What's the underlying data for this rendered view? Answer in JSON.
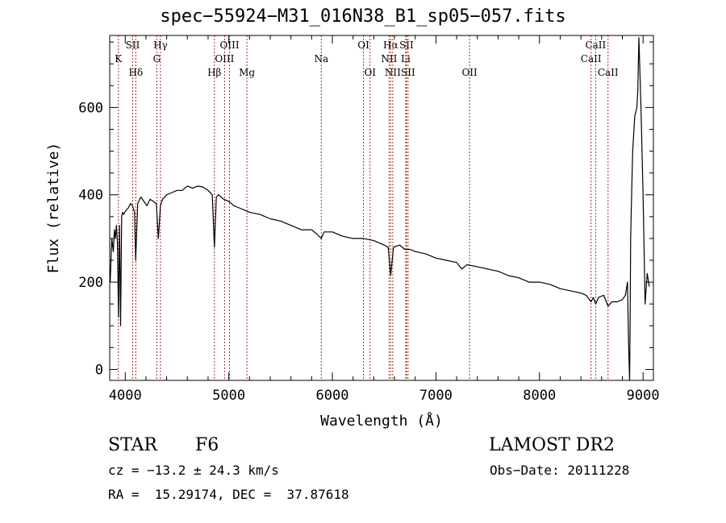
{
  "chart_data": {
    "type": "line",
    "title": "spec−55924−M31_016N38_B1_sp05−057.fits",
    "xlabel": "Wavelength (Å)",
    "ylabel": "Flux (relative)",
    "xlim": [
      3850,
      9100
    ],
    "ylim": [
      -25,
      765
    ],
    "xticks": [
      4000,
      5000,
      6000,
      7000,
      8000,
      9000
    ],
    "yticks": [
      0,
      200,
      400,
      600
    ],
    "series": [
      {
        "x": [
          3855,
          3870,
          3885,
          3895,
          3905,
          3915,
          3925,
          3935,
          3945,
          3955,
          3965,
          3975,
          3985,
          3995,
          4010,
          4030,
          4050,
          4070,
          4090,
          4101,
          4120,
          4150,
          4180,
          4210,
          4240,
          4270,
          4300,
          4320,
          4340,
          4360,
          4400,
          4450,
          4500,
          4550,
          4600,
          4650,
          4700,
          4750,
          4800,
          4840,
          4861,
          4880,
          4900,
          4950,
          5000,
          5050,
          5100,
          5150,
          5200,
          5300,
          5400,
          5500,
          5600,
          5700,
          5800,
          5850,
          5893,
          5920,
          6000,
          6100,
          6200,
          6300,
          6400,
          6450,
          6500,
          6540,
          6563,
          6590,
          6650,
          6700,
          6750,
          6800,
          6900,
          7000,
          7100,
          7200,
          7250,
          7300,
          7400,
          7500,
          7600,
          7700,
          7800,
          7900,
          8000,
          8100,
          8200,
          8300,
          8400,
          8450,
          8498,
          8520,
          8542,
          8570,
          8620,
          8662,
          8700,
          8750,
          8800,
          8830,
          8850,
          8860,
          8870,
          8875,
          8880,
          8890,
          8900,
          8920,
          8940,
          8950,
          8960,
          8980,
          9000,
          9020,
          9040,
          9060
        ],
        "y": [
          200,
          300,
          270,
          320,
          300,
          330,
          290,
          120,
          330,
          100,
          350,
          360,
          355,
          360,
          365,
          370,
          380,
          375,
          360,
          250,
          380,
          395,
          385,
          375,
          390,
          385,
          380,
          300,
          375,
          390,
          400,
          405,
          410,
          410,
          420,
          415,
          420,
          418,
          410,
          400,
          280,
          395,
          400,
          390,
          385,
          375,
          370,
          365,
          360,
          355,
          345,
          340,
          330,
          320,
          320,
          310,
          300,
          315,
          315,
          305,
          300,
          300,
          295,
          290,
          285,
          280,
          215,
          280,
          285,
          275,
          275,
          270,
          265,
          255,
          250,
          245,
          230,
          240,
          235,
          230,
          225,
          215,
          210,
          200,
          200,
          195,
          185,
          180,
          175,
          170,
          155,
          165,
          150,
          165,
          170,
          145,
          155,
          155,
          160,
          170,
          200,
          60,
          -25,
          100,
          300,
          400,
          500,
          580,
          600,
          640,
          760,
          600,
          400,
          150,
          220,
          190
        ],
        "color": "#000000"
      }
    ],
    "lines": [
      {
        "label": "K",
        "x": 3934,
        "row": 2
      },
      {
        "label": "SII",
        "x": 4072,
        "row": 1
      },
      {
        "label": "Hδ",
        "x": 4102,
        "row": 3
      },
      {
        "label": "Hγ",
        "x": 4340,
        "row": 1
      },
      {
        "label": "G",
        "x": 4305,
        "row": 2
      },
      {
        "label": "Hβ",
        "x": 4861,
        "row": 3
      },
      {
        "label": "OIII",
        "x": 4959,
        "row": 2
      },
      {
        "label": "OIII",
        "x": 5007,
        "row": 1
      },
      {
        "label": "Mg",
        "x": 5175,
        "row": 3
      },
      {
        "label": "Na",
        "x": 5893,
        "row": 2
      },
      {
        "label": "OI",
        "x": 6300,
        "row": 1
      },
      {
        "label": "OI",
        "x": 6364,
        "row": 3
      },
      {
        "label": "NII",
        "x": 6548,
        "row": 2
      },
      {
        "label": "Hα",
        "x": 6563,
        "row": 1
      },
      {
        "label": "NII",
        "x": 6583,
        "row": 3
      },
      {
        "label": "SII",
        "x": 6716,
        "row": 1
      },
      {
        "label": "Li",
        "x": 6708,
        "row": 2
      },
      {
        "label": "SII",
        "x": 6731,
        "row": 3
      },
      {
        "label": "OII",
        "x": 7325,
        "row": 3
      },
      {
        "label": "CaII",
        "x": 8542,
        "row": 1
      },
      {
        "label": "CaII",
        "x": 8498,
        "row": 2
      },
      {
        "label": "CaII",
        "x": 8662,
        "row": 3
      }
    ]
  },
  "info": {
    "class": "STAR",
    "subclass": "F6",
    "survey": "LAMOST DR2",
    "cz": "cz = −13.2 ± 24.3 km/s",
    "obsdate": "Obs−Date: 20111228",
    "radec": "RA =  15.29174, DEC =  37.87618"
  },
  "colors": {
    "spectrum": "#000000",
    "line_marker": "#a0302a"
  }
}
